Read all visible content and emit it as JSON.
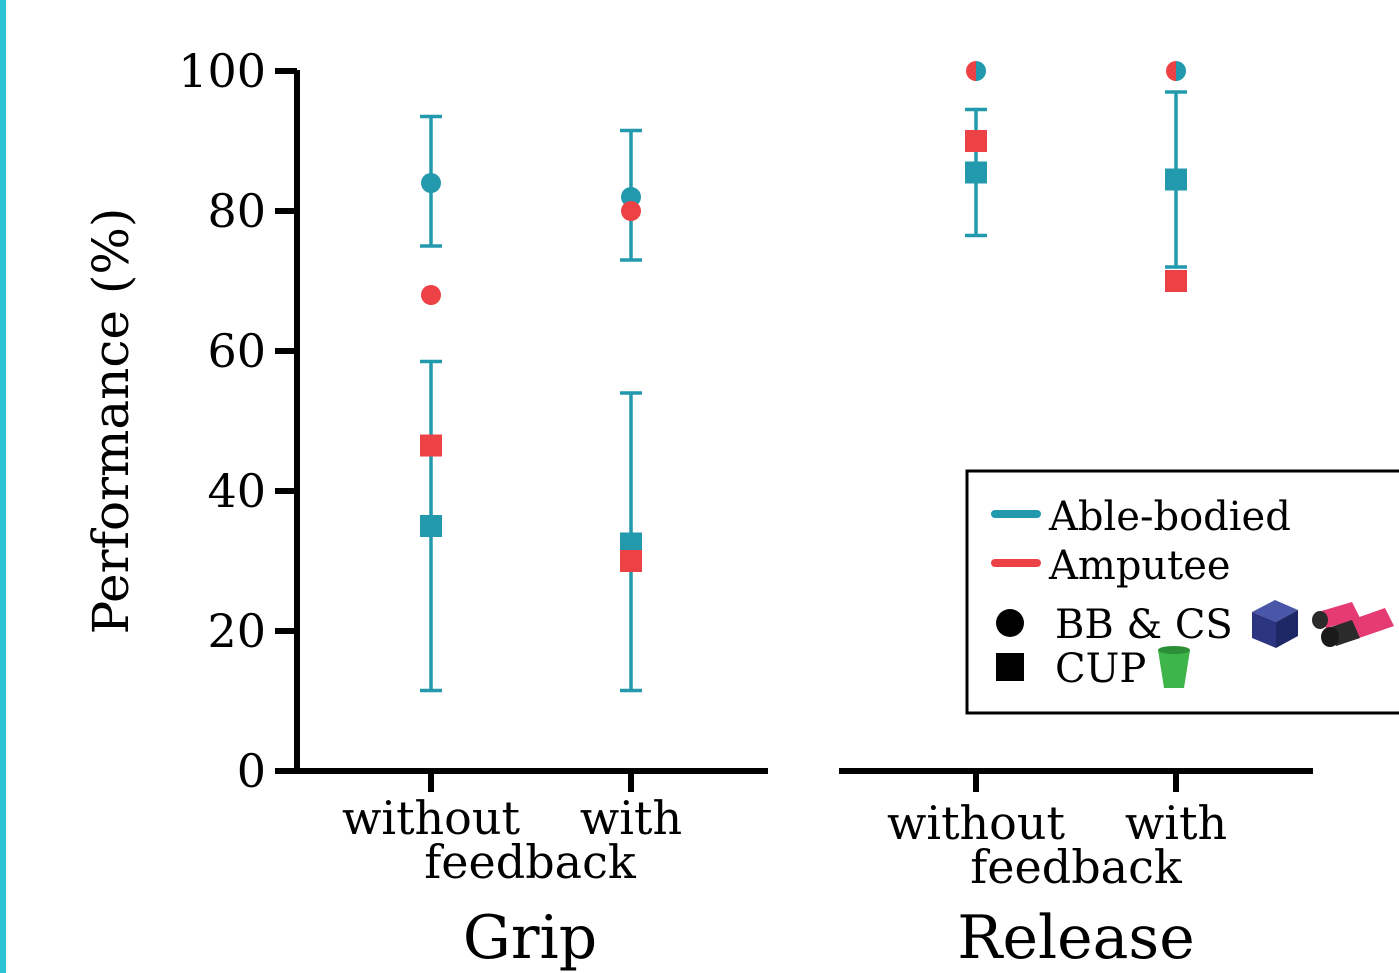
{
  "chart_data": {
    "type": "scatter",
    "ylabel": "Performance (%)",
    "ylim": [
      0,
      100
    ],
    "yticks": [
      "0",
      "20",
      "40",
      "60",
      "80",
      "100"
    ],
    "panels": [
      {
        "name": "Grip",
        "categories": [
          "without",
          "with"
        ],
        "sublabel": "feedback"
      },
      {
        "name": "Release",
        "categories": [
          "without",
          "with"
        ],
        "sublabel": "feedback"
      }
    ],
    "series": [
      {
        "name": "Able-bodied",
        "marker": "circle",
        "task": "BB & CS",
        "color": "#2399ad",
        "points": [
          {
            "panel": "Grip",
            "x": "without",
            "y": 84,
            "err_low": 75,
            "err_high": 93.5
          },
          {
            "panel": "Grip",
            "x": "with",
            "y": 82,
            "err_low": 73,
            "err_high": 91.5
          },
          {
            "panel": "Release",
            "x": "without",
            "y": 100
          },
          {
            "panel": "Release",
            "x": "with",
            "y": 100
          }
        ]
      },
      {
        "name": "Amputee",
        "marker": "circle",
        "task": "BB & CS",
        "color": "#ec4245",
        "points": [
          {
            "panel": "Grip",
            "x": "without",
            "y": 68
          },
          {
            "panel": "Grip",
            "x": "with",
            "y": 80
          },
          {
            "panel": "Release",
            "x": "without",
            "y": 100
          },
          {
            "panel": "Release",
            "x": "with",
            "y": 100
          }
        ]
      },
      {
        "name": "Able-bodied",
        "marker": "square",
        "task": "CUP",
        "color": "#2399ad",
        "points": [
          {
            "panel": "Grip",
            "x": "without",
            "y": 35,
            "err_low": 11.5,
            "err_high": 58.5
          },
          {
            "panel": "Grip",
            "x": "with",
            "y": 32.5,
            "err_low": 11.5,
            "err_high": 54
          },
          {
            "panel": "Release",
            "x": "without",
            "y": 85.5,
            "err_low": 76.5,
            "err_high": 94.5
          },
          {
            "panel": "Release",
            "x": "with",
            "y": 84.5,
            "err_low": 72,
            "err_high": 97
          }
        ]
      },
      {
        "name": "Amputee",
        "marker": "square",
        "task": "CUP",
        "color": "#ec4245",
        "points": [
          {
            "panel": "Grip",
            "x": "without",
            "y": 46.5
          },
          {
            "panel": "Grip",
            "x": "with",
            "y": 30
          },
          {
            "panel": "Release",
            "x": "without",
            "y": 90
          },
          {
            "panel": "Release",
            "x": "with",
            "y": 70
          }
        ]
      }
    ],
    "legend": {
      "placement": "bottom-right",
      "lines": [
        {
          "label": "Able-bodied",
          "color": "#2399ad"
        },
        {
          "label": "Amputee",
          "color": "#ec4245"
        }
      ],
      "markers": [
        {
          "label": "BB & CS",
          "shape": "circle"
        },
        {
          "label": "CUP",
          "shape": "square"
        }
      ]
    }
  }
}
